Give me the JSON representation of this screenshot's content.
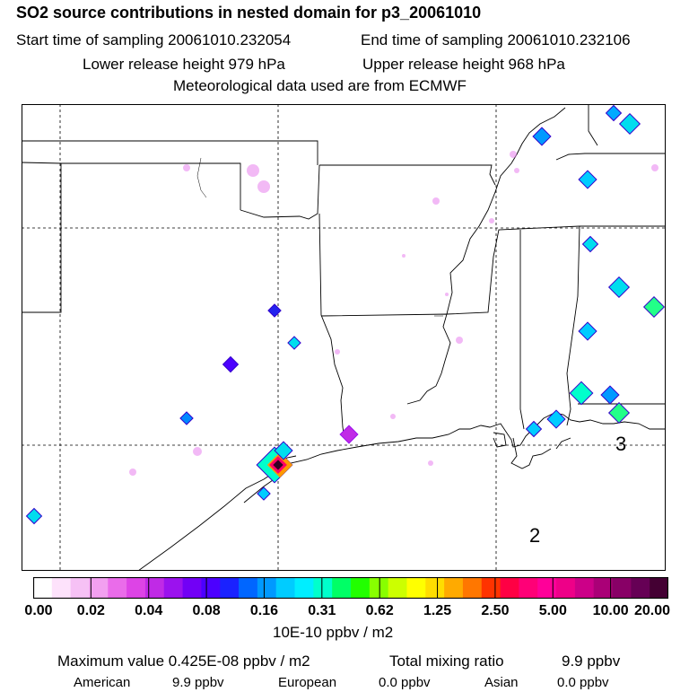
{
  "header": {
    "title": "SO2 source contributions in nested domain for p3_20061010",
    "start_time": "Start time of sampling 20061010.232054",
    "end_time": "End time of sampling 20061010.232106",
    "lower_release": "Lower release height  979 hPa",
    "upper_release": "Upper release height  968 hPa",
    "met_data": "Meteorological data used are from ECMWF"
  },
  "map": {
    "region_labels": [
      "3",
      "2"
    ]
  },
  "colorbar": {
    "tick_labels": [
      "0.00",
      "0.02",
      "0.04",
      "0.08",
      "0.16",
      "0.31",
      "0.62",
      "1.25",
      "2.50",
      "5.00",
      "10.00",
      "20.00"
    ],
    "units": "10E-10 ppbv / m2",
    "colors": [
      "#ffffff",
      "#fde2fb",
      "#f6c1f5",
      "#f2a0f0",
      "#ea6cea",
      "#dd44e6",
      "#c02ae6",
      "#9b12ee",
      "#7200f6",
      "#4c00ff",
      "#1a22ff",
      "#0066ff",
      "#0099ff",
      "#00ccff",
      "#00eeff",
      "#00ffcc",
      "#00ff66",
      "#22ff00",
      "#88ff00",
      "#ccff00",
      "#ffff00",
      "#ffdd00",
      "#ffaa00",
      "#ff7700",
      "#ff3300",
      "#ff0044",
      "#ff0077",
      "#ff0099",
      "#ee0088",
      "#cc0088",
      "#aa0077",
      "#880066",
      "#660055",
      "#440033"
    ]
  },
  "summary": {
    "max_value": "Maximum value  0.425E-08 ppbv / m2",
    "total_label": "Total mixing ratio",
    "total_value": "9.9 ppbv",
    "american_label": "American",
    "american_value": "9.9 ppbv",
    "european_label": "European",
    "european_value": "0.0 ppbv",
    "asian_label": "Asian",
    "asian_value": "0.0 ppbv"
  }
}
